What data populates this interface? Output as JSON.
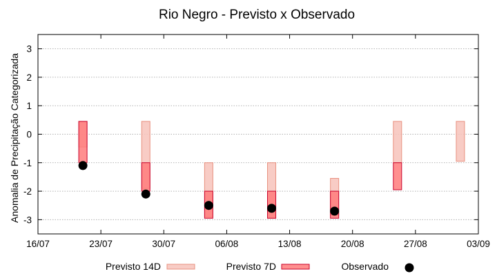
{
  "chart_data": {
    "type": "floating-bar",
    "title": "Rio Negro - Previsto x Observado",
    "xlabel": "",
    "ylabel": "Anomalia de Precipitação Categorizada",
    "ylim": [
      -3.5,
      3.5
    ],
    "yticks": [
      -3,
      -2,
      -1,
      0,
      1,
      2,
      3
    ],
    "xlim": [
      "2020-07-16",
      "2020-09-03"
    ],
    "xticks": [
      "2020-07-16",
      "2020-07-23",
      "2020-07-30",
      "2020-08-06",
      "2020-08-13",
      "2020-08-20",
      "2020-08-27",
      "2020-09-03"
    ],
    "xtick_labels": [
      "16/07",
      "23/07",
      "30/07",
      "06/08",
      "13/08",
      "20/08",
      "27/08",
      "03/09"
    ],
    "grid": true,
    "legend_position": "bottom",
    "series": [
      {
        "name": "Previsto 14D",
        "color": "#f7c3bb",
        "stroke": "#e8907f",
        "bars": [
          {
            "date": "2020-07-21",
            "low": -0.45,
            "high": 0.45
          },
          {
            "date": "2020-07-28",
            "low": -1.9,
            "high": 0.45
          },
          {
            "date": "2020-08-04",
            "low": -2.9,
            "high": -1.0
          },
          {
            "date": "2020-08-11",
            "low": -2.95,
            "high": -1.0
          },
          {
            "date": "2020-08-18",
            "low": -2.85,
            "high": -1.55
          },
          {
            "date": "2020-08-25",
            "low": -1.0,
            "high": 0.45
          },
          {
            "date": "2020-09-01",
            "low": -0.95,
            "high": 0.45
          }
        ]
      },
      {
        "name": "Previsto 7D",
        "color": "#ff7b7b",
        "stroke": "#c8002a",
        "bars": [
          {
            "date": "2020-07-21",
            "low": -1.0,
            "high": 0.45
          },
          {
            "date": "2020-07-28",
            "low": -2.0,
            "high": -1.0
          },
          {
            "date": "2020-08-04",
            "low": -2.95,
            "high": -2.0
          },
          {
            "date": "2020-08-11",
            "low": -2.95,
            "high": -2.0
          },
          {
            "date": "2020-08-18",
            "low": -2.95,
            "high": -2.0
          },
          {
            "date": "2020-08-25",
            "low": -1.95,
            "high": -1.0
          }
        ]
      },
      {
        "name": "Observado",
        "color": "#000000",
        "points": [
          {
            "date": "2020-07-21",
            "value": -1.1
          },
          {
            "date": "2020-07-28",
            "value": -2.1
          },
          {
            "date": "2020-08-04",
            "value": -2.5
          },
          {
            "date": "2020-08-11",
            "value": -2.6
          },
          {
            "date": "2020-08-18",
            "value": -2.7
          }
        ]
      }
    ]
  }
}
